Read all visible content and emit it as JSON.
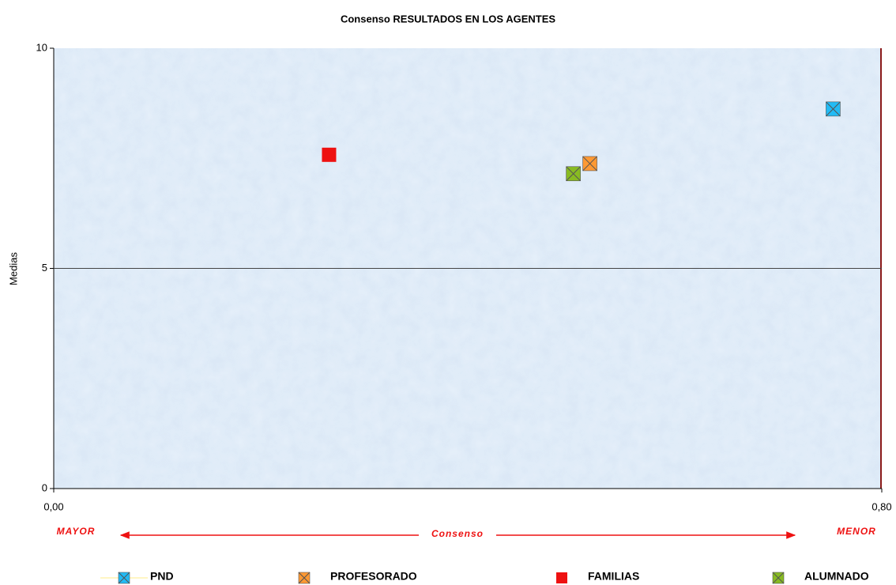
{
  "chart_data": {
    "type": "scatter",
    "title": "Consenso RESULTADOS EN LOS AGENTES",
    "y_label": "Medias",
    "xlim": [
      0,
      0.8
    ],
    "xticks": [
      {
        "value": 0,
        "label": "0,00"
      },
      {
        "value": 0.8,
        "label": "0,80"
      }
    ],
    "ylim": [
      0,
      10
    ],
    "yticks": [
      0,
      5,
      10
    ],
    "grid": true,
    "annotations": [
      "MAYOR",
      "Consenso",
      "MENOR"
    ],
    "legend": "bottom",
    "series": [
      {
        "name": "PND",
        "color": "#22bbf5",
        "marker": "x-square",
        "x": [
          0.753
        ],
        "values": [
          8.62
        ]
      },
      {
        "name": "PROFESORADO",
        "color": "#ff9933",
        "marker": "x-square",
        "x": [
          0.518
        ],
        "values": [
          7.38
        ]
      },
      {
        "name": "FAMILIAS",
        "color": "#ee1111",
        "marker": "square",
        "x": [
          0.266
        ],
        "values": [
          7.58
        ]
      },
      {
        "name": "ALUMNADO",
        "color": "#88bb22",
        "marker": "x-square",
        "x": [
          0.502
        ],
        "values": [
          7.15
        ]
      }
    ]
  }
}
